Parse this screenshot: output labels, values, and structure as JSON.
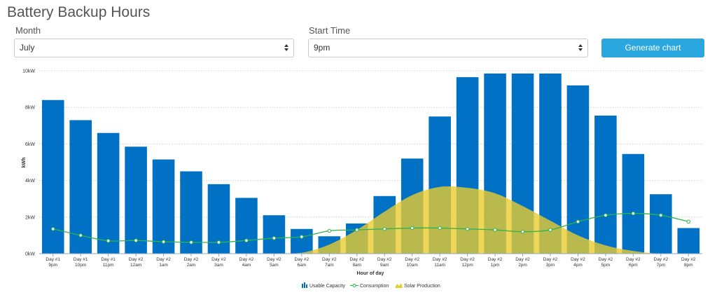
{
  "header": {
    "title": "Battery Backup Hours"
  },
  "controls": {
    "month_label": "Month",
    "month_value": "July",
    "start_label": "Start Time",
    "start_value": "9pm",
    "generate_label": "Generate chart"
  },
  "colors": {
    "usable_capacity": "#0071c5",
    "consumption": "#2fb34a",
    "solar_production": "#e8cc2e",
    "accent_button": "#2aa7df"
  },
  "chart_data": {
    "type": "bar",
    "title": "",
    "xlabel": "Hour of day",
    "ylabel": "kWh",
    "ylim": [
      0,
      10
    ],
    "y_ticks": [
      "0kW",
      "2kW",
      "4kW",
      "6kW",
      "8kW",
      "10kW"
    ],
    "grid": true,
    "legend_position": "bottom",
    "categories": [
      [
        "Day #1",
        "9pm"
      ],
      [
        "Day #1",
        "10pm"
      ],
      [
        "Day #1",
        "11pm"
      ],
      [
        "Day #2",
        "12am"
      ],
      [
        "Day #2",
        "1am"
      ],
      [
        "Day #2",
        "2am"
      ],
      [
        "Day #2",
        "3am"
      ],
      [
        "Day #2",
        "4am"
      ],
      [
        "Day #2",
        "5am"
      ],
      [
        "Day #2",
        "6am"
      ],
      [
        "Day #2",
        "7am"
      ],
      [
        "Day #2",
        "8am"
      ],
      [
        "Day #2",
        "9am"
      ],
      [
        "Day #2",
        "10am"
      ],
      [
        "Day #2",
        "11am"
      ],
      [
        "Day #2",
        "12pm"
      ],
      [
        "Day #2",
        "1pm"
      ],
      [
        "Day #2",
        "2pm"
      ],
      [
        "Day #2",
        "3pm"
      ],
      [
        "Day #2",
        "4pm"
      ],
      [
        "Day #2",
        "5pm"
      ],
      [
        "Day #2",
        "6pm"
      ],
      [
        "Day #2",
        "7pm"
      ],
      [
        "Day #2",
        "8pm"
      ]
    ],
    "series": [
      {
        "name": "Usable Capacity",
        "type": "bar",
        "values": [
          8.4,
          7.3,
          6.6,
          5.85,
          5.15,
          4.5,
          3.8,
          3.05,
          2.1,
          1.35,
          0.95,
          1.65,
          3.15,
          5.2,
          7.5,
          9.65,
          9.85,
          9.85,
          9.85,
          9.2,
          7.55,
          5.45,
          3.25,
          1.4
        ]
      },
      {
        "name": "Consumption",
        "type": "line",
        "values": [
          1.35,
          1.0,
          0.7,
          0.72,
          0.65,
          0.62,
          0.62,
          0.72,
          0.85,
          0.92,
          1.25,
          1.3,
          1.35,
          1.4,
          1.4,
          1.35,
          1.3,
          1.2,
          1.3,
          1.75,
          2.1,
          2.2,
          2.1,
          1.75
        ]
      },
      {
        "name": "Solar Production",
        "type": "area",
        "values": [
          0,
          0,
          0,
          0,
          0,
          0,
          0,
          0,
          0,
          0.05,
          0.5,
          1.3,
          2.3,
          3.2,
          3.65,
          3.6,
          3.3,
          2.6,
          1.8,
          1.0,
          0.45,
          0.15,
          0,
          0
        ]
      }
    ]
  }
}
